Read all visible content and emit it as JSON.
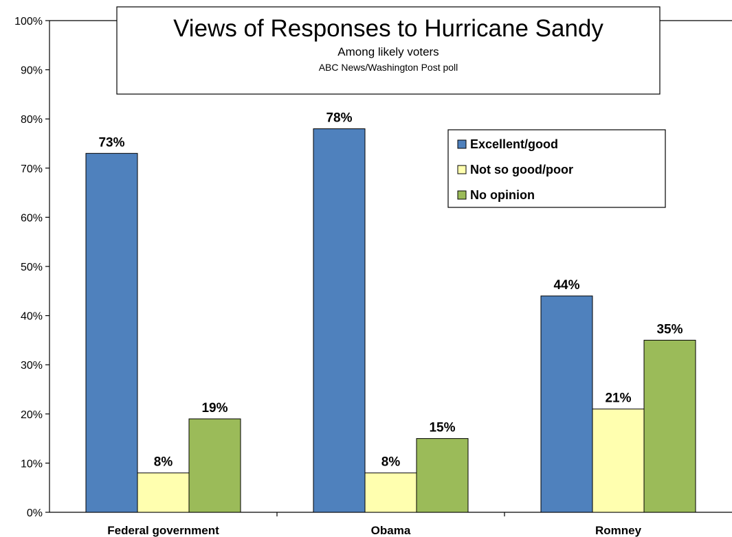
{
  "chart_data": {
    "type": "bar",
    "title": "Views of Responses to Hurricane Sandy",
    "subtitle": "Among likely voters",
    "source": "ABC News/Washington  Post poll",
    "categories": [
      "Federal government",
      "Obama",
      "Romney"
    ],
    "series": [
      {
        "name": "Excellent/good",
        "color": "#4f81bd",
        "values": [
          73,
          78,
          44
        ],
        "labels": [
          "73%",
          "78%",
          "44%"
        ]
      },
      {
        "name": "Not so good/poor",
        "color": "#ffffaf",
        "values": [
          8,
          8,
          21
        ],
        "labels": [
          "8%",
          "8%",
          "21%"
        ]
      },
      {
        "name": "No opinion",
        "color": "#9bbb59",
        "values": [
          19,
          15,
          35
        ],
        "labels": [
          "19%",
          "15%",
          "35%"
        ]
      }
    ],
    "ylim": [
      0,
      100
    ],
    "yticks": [
      0,
      10,
      20,
      30,
      40,
      50,
      60,
      70,
      80,
      90,
      100
    ],
    "ytick_labels": [
      "0%",
      "10%",
      "20%",
      "30%",
      "40%",
      "50%",
      "60%",
      "70%",
      "80%",
      "90%",
      "100%"
    ],
    "grid": false,
    "legend_position": "top-right"
  }
}
